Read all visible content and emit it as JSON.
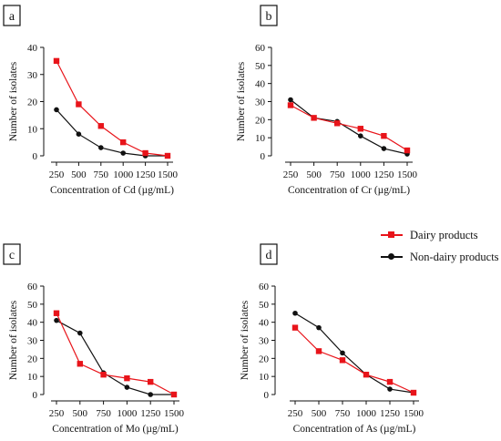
{
  "figure": {
    "legend": [
      {
        "name": "Dairy products",
        "color": "#e8141a",
        "marker": "square"
      },
      {
        "name": "Non-dairy products",
        "color": "#111111",
        "marker": "circle"
      }
    ]
  },
  "chart_data": [
    {
      "type": "line",
      "panel_label": "a",
      "x": [
        250,
        500,
        750,
        1000,
        1250,
        1500
      ],
      "xlabel": "Concentration of Cd (µg/mL)",
      "ylabel": "Number of isolates",
      "ylim": [
        0,
        40
      ],
      "yticks": [
        0,
        10,
        20,
        30,
        40
      ],
      "grid": false,
      "series": [
        {
          "name": "Dairy products",
          "values": [
            35,
            19,
            11,
            5,
            1,
            0
          ]
        },
        {
          "name": "Non-dairy products",
          "values": [
            17,
            8,
            3,
            1,
            0,
            0
          ]
        }
      ]
    },
    {
      "type": "line",
      "panel_label": "b",
      "x": [
        250,
        500,
        750,
        1000,
        1250,
        1500
      ],
      "xlabel": "Concentration of Cr (µg/mL)",
      "ylabel": "Number of isolates",
      "ylim": [
        0,
        60
      ],
      "yticks": [
        0,
        10,
        20,
        30,
        40,
        50,
        60
      ],
      "grid": false,
      "series": [
        {
          "name": "Dairy products",
          "values": [
            28,
            21,
            18,
            15,
            11,
            3
          ]
        },
        {
          "name": "Non-dairy products",
          "values": [
            31,
            21,
            19,
            11,
            4,
            1
          ]
        }
      ]
    },
    {
      "type": "line",
      "panel_label": "c",
      "x": [
        250,
        500,
        750,
        1000,
        1250,
        1500
      ],
      "xlabel": "Concentration of Mo (µg/mL)",
      "ylabel": "Number of isolates",
      "ylim": [
        0,
        60
      ],
      "yticks": [
        0,
        10,
        20,
        30,
        40,
        50,
        60
      ],
      "grid": false,
      "series": [
        {
          "name": "Dairy products",
          "values": [
            45,
            17,
            11,
            9,
            7,
            0
          ]
        },
        {
          "name": "Non-dairy products",
          "values": [
            41,
            34,
            12,
            4,
            0,
            0
          ]
        }
      ]
    },
    {
      "type": "line",
      "panel_label": "d",
      "x": [
        250,
        500,
        750,
        1000,
        1250,
        1500
      ],
      "xlabel": "Concentration of As (µg/mL)",
      "ylabel": "Number of isolates",
      "ylim": [
        0,
        60
      ],
      "yticks": [
        0,
        10,
        20,
        30,
        40,
        50,
        60
      ],
      "grid": false,
      "series": [
        {
          "name": "Dairy products",
          "values": [
            37,
            24,
            19,
            11,
            7,
            1
          ]
        },
        {
          "name": "Non-dairy products",
          "values": [
            45,
            37,
            23,
            11,
            3,
            1
          ]
        }
      ]
    }
  ]
}
